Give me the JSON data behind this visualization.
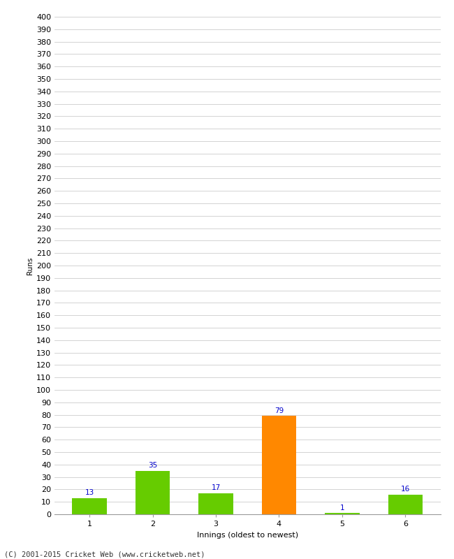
{
  "xlabel": "Innings (oldest to newest)",
  "ylabel": "Runs",
  "categories": [
    1,
    2,
    3,
    4,
    5,
    6
  ],
  "values": [
    13,
    35,
    17,
    79,
    1,
    16
  ],
  "bar_colors": [
    "#66cc00",
    "#66cc00",
    "#66cc00",
    "#ff8800",
    "#66cc00",
    "#66cc00"
  ],
  "label_color": "#0000cc",
  "ylim": [
    0,
    400
  ],
  "yticks": [
    0,
    10,
    20,
    30,
    40,
    50,
    60,
    70,
    80,
    90,
    100,
    110,
    120,
    130,
    140,
    150,
    160,
    170,
    180,
    190,
    200,
    210,
    220,
    230,
    240,
    250,
    260,
    270,
    280,
    290,
    300,
    310,
    320,
    330,
    340,
    350,
    360,
    370,
    380,
    390,
    400
  ],
  "bg_color": "#ffffff",
  "grid_color": "#cccccc",
  "footer": "(C) 2001-2015 Cricket Web (www.cricketweb.net)",
  "bar_width": 0.55,
  "label_fontsize": 7.5,
  "axis_fontsize": 8,
  "ylabel_fontsize": 7.5,
  "xlabel_fontsize": 8,
  "footer_fontsize": 7.5
}
